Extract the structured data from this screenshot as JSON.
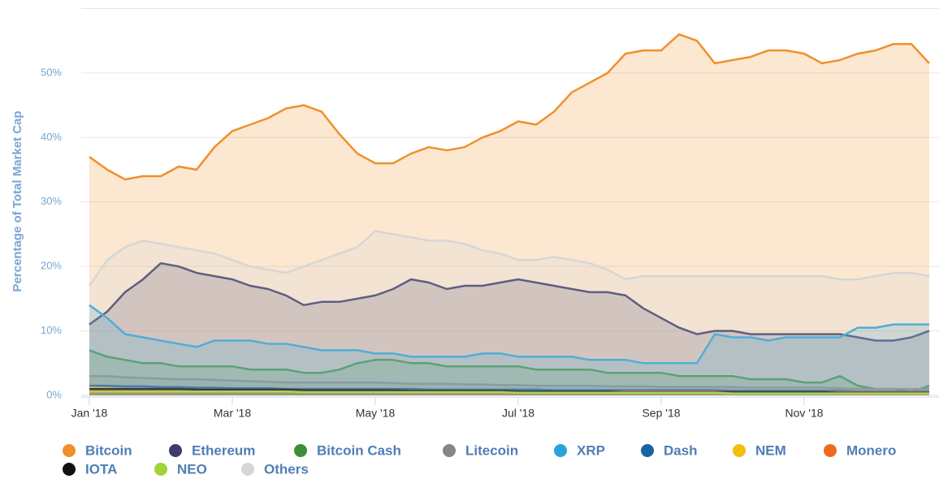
{
  "chart_data": {
    "type": "area",
    "y_axis_label": "Percentage of Total Market Cap",
    "categories": [
      "Jan '18",
      null,
      null,
      null,
      null,
      null,
      null,
      null,
      "Mar '18",
      null,
      null,
      null,
      null,
      null,
      null,
      null,
      "May '18",
      null,
      null,
      null,
      null,
      null,
      null,
      null,
      "Jul '18",
      null,
      null,
      null,
      null,
      null,
      null,
      null,
      "Sep '18",
      null,
      null,
      null,
      null,
      null,
      null,
      null,
      "Nov '18",
      null,
      null,
      null,
      null,
      null,
      null,
      null
    ],
    "ylim": [
      0,
      60
    ],
    "yticks": [
      {
        "value": 0,
        "label": "0%"
      },
      {
        "value": 10,
        "label": "10%"
      },
      {
        "value": 20,
        "label": "20%"
      },
      {
        "value": 30,
        "label": "30%"
      },
      {
        "value": 40,
        "label": "40%"
      },
      {
        "value": 50,
        "label": "50%"
      }
    ],
    "grid": true,
    "legend": "bottom",
    "series": [
      {
        "name": "Bitcoin",
        "color": "#f0902c",
        "values": [
          37,
          35,
          33.5,
          34,
          34,
          35.5,
          35,
          38.5,
          41,
          42,
          43,
          44.5,
          45,
          44,
          40.5,
          37.5,
          36,
          36,
          37.5,
          38.5,
          38,
          38.5,
          40,
          41,
          42.5,
          42,
          44,
          47,
          48.5,
          50,
          53,
          53.5,
          53.5,
          56,
          55,
          51.5,
          52,
          52.5,
          53.5,
          53.5,
          53,
          51.5,
          52,
          53,
          53.5,
          54.5,
          54.5,
          51.5
        ]
      },
      {
        "name": "Ethereum",
        "color": "#3d3d6b",
        "values": [
          11,
          13,
          16,
          18,
          20.5,
          20,
          19,
          18.5,
          18,
          17,
          16.5,
          15.5,
          14,
          14.5,
          14.5,
          15,
          15.5,
          16.5,
          18,
          17.5,
          16.5,
          17,
          17,
          17.5,
          18,
          17.5,
          17,
          16.5,
          16,
          16,
          15.5,
          13.5,
          12,
          10.5,
          9.5,
          10,
          10,
          9.5,
          9.5,
          9.5,
          9.5,
          9.5,
          9.5,
          9,
          8.5,
          8.5,
          9,
          10
        ]
      },
      {
        "name": "Bitcoin Cash",
        "color": "#3f8f3a",
        "values": [
          7,
          6,
          5.5,
          5,
          5,
          4.5,
          4.5,
          4.5,
          4.5,
          4,
          4,
          4,
          3.5,
          3.5,
          4,
          5,
          5.5,
          5.5,
          5,
          5,
          4.5,
          4.5,
          4.5,
          4.5,
          4.5,
          4,
          4,
          4,
          4,
          3.5,
          3.5,
          3.5,
          3.5,
          3,
          3,
          3,
          3,
          2.5,
          2.5,
          2.5,
          2,
          2,
          3,
          1.5,
          1,
          1,
          0.5,
          1.5
        ]
      },
      {
        "name": "Litecoin",
        "color": "#868686",
        "values": [
          3,
          3,
          2.8,
          2.7,
          2.6,
          2.5,
          2.5,
          2.4,
          2.3,
          2.2,
          2.1,
          2,
          2,
          2,
          2,
          2,
          2,
          1.9,
          1.8,
          1.8,
          1.8,
          1.7,
          1.7,
          1.6,
          1.6,
          1.5,
          1.5,
          1.5,
          1.5,
          1.4,
          1.4,
          1.4,
          1.3,
          1.3,
          1.3,
          1.3,
          1.3,
          1.2,
          1.2,
          1.2,
          1.2,
          1.2,
          1.1,
          1,
          1,
          1,
          1,
          1
        ]
      },
      {
        "name": "XRP",
        "color": "#2aa3d8",
        "values": [
          14,
          12,
          9.5,
          9,
          8.5,
          8,
          7.5,
          8.5,
          8.5,
          8.5,
          8,
          8,
          7.5,
          7,
          7,
          7,
          6.5,
          6.5,
          6,
          6,
          6,
          6,
          6.5,
          6.5,
          6,
          6,
          6,
          6,
          5.5,
          5.5,
          5.5,
          5,
          5,
          5,
          5,
          9.5,
          9,
          9,
          8.5,
          9,
          9,
          9,
          9,
          10.5,
          10.5,
          11,
          11,
          11
        ]
      },
      {
        "name": "Dash",
        "color": "#1b64a3",
        "values": [
          1.5,
          1.5,
          1.4,
          1.4,
          1.3,
          1.3,
          1.2,
          1.2,
          1.1,
          1.1,
          1.1,
          1,
          1,
          1,
          1,
          1,
          1,
          1,
          1,
          0.9,
          0.9,
          0.9,
          0.9,
          0.9,
          0.9,
          0.9,
          0.8,
          0.8,
          0.8,
          0.8,
          0.8,
          0.8,
          0.8,
          0.8,
          0.8,
          0.8,
          0.7,
          0.7,
          0.7,
          0.7,
          0.7,
          0.7,
          0.7,
          0.6,
          0.6,
          0.6,
          0.6,
          0.6
        ]
      },
      {
        "name": "NEM",
        "color": "#f5bd0c",
        "values": [
          1.2,
          1.1,
          1,
          1,
          0.9,
          0.9,
          0.8,
          0.8,
          0.7,
          0.7,
          0.7,
          0.6,
          0.6,
          0.6,
          0.6,
          0.6,
          0.6,
          0.5,
          0.5,
          0.5,
          0.5,
          0.5,
          0.5,
          0.5,
          0.5,
          0.4,
          0.4,
          0.4,
          0.4,
          0.4,
          0.4,
          0.4,
          0.4,
          0.4,
          0.4,
          0.4,
          0.3,
          0.3,
          0.3,
          0.3,
          0.3,
          0.3,
          0.3,
          0.3,
          0.3,
          0.3,
          0.3,
          0.3
        ]
      },
      {
        "name": "Monero",
        "color": "#f06a1e",
        "values": [
          0.8,
          0.8,
          0.8,
          0.8,
          0.8,
          0.8,
          0.8,
          0.8,
          0.8,
          0.8,
          0.8,
          0.8,
          0.7,
          0.7,
          0.7,
          0.7,
          0.7,
          0.7,
          0.7,
          0.7,
          0.7,
          0.7,
          0.7,
          0.7,
          0.6,
          0.6,
          0.6,
          0.6,
          0.6,
          0.6,
          0.6,
          0.6,
          0.6,
          0.6,
          0.6,
          0.6,
          0.5,
          0.5,
          0.5,
          0.5,
          0.5,
          0.5,
          0.5,
          0.5,
          0.5,
          0.5,
          0.5,
          0.5
        ]
      },
      {
        "name": "IOTA",
        "color": "#111111",
        "values": [
          1,
          1,
          1,
          1,
          1,
          1,
          0.9,
          0.9,
          0.9,
          0.9,
          0.9,
          0.9,
          0.8,
          0.8,
          0.8,
          0.8,
          0.8,
          0.8,
          0.7,
          0.7,
          0.7,
          0.7,
          0.7,
          0.7,
          0.6,
          0.6,
          0.6,
          0.6,
          0.6,
          0.6,
          0.5,
          0.5,
          0.5,
          0.5,
          0.5,
          0.5,
          0.5,
          0.5,
          0.5,
          0.5,
          0.5,
          0.5,
          0.4,
          0.4,
          0.4,
          0.4,
          0.4,
          0.4
        ]
      },
      {
        "name": "NEO",
        "color": "#a2d235",
        "values": [
          0.6,
          0.6,
          0.6,
          0.6,
          0.6,
          0.6,
          0.6,
          0.6,
          0.6,
          0.6,
          0.6,
          0.6,
          0.5,
          0.5,
          0.5,
          0.5,
          0.5,
          0.5,
          0.5,
          0.5,
          0.5,
          0.5,
          0.5,
          0.5,
          0.4,
          0.4,
          0.4,
          0.4,
          0.4,
          0.4,
          0.4,
          0.4,
          0.4,
          0.4,
          0.4,
          0.4,
          0.3,
          0.3,
          0.3,
          0.3,
          0.3,
          0.3,
          0.3,
          0.3,
          0.3,
          0.3,
          0.3,
          0.3
        ]
      },
      {
        "name": "Others",
        "color": "#d6d6d6",
        "values": [
          17,
          21,
          23,
          24,
          23.5,
          23,
          22.5,
          22,
          21,
          20,
          19.5,
          19,
          20,
          21,
          22,
          23,
          25.5,
          25,
          24.5,
          24,
          24,
          23.5,
          22.5,
          22,
          21,
          21,
          21.5,
          21,
          20.5,
          19.5,
          18,
          18.5,
          18.5,
          18.5,
          18.5,
          18.5,
          18.5,
          18.5,
          18.5,
          18.5,
          18.5,
          18.5,
          18,
          18,
          18.5,
          19,
          19,
          18.5
        ]
      }
    ]
  }
}
